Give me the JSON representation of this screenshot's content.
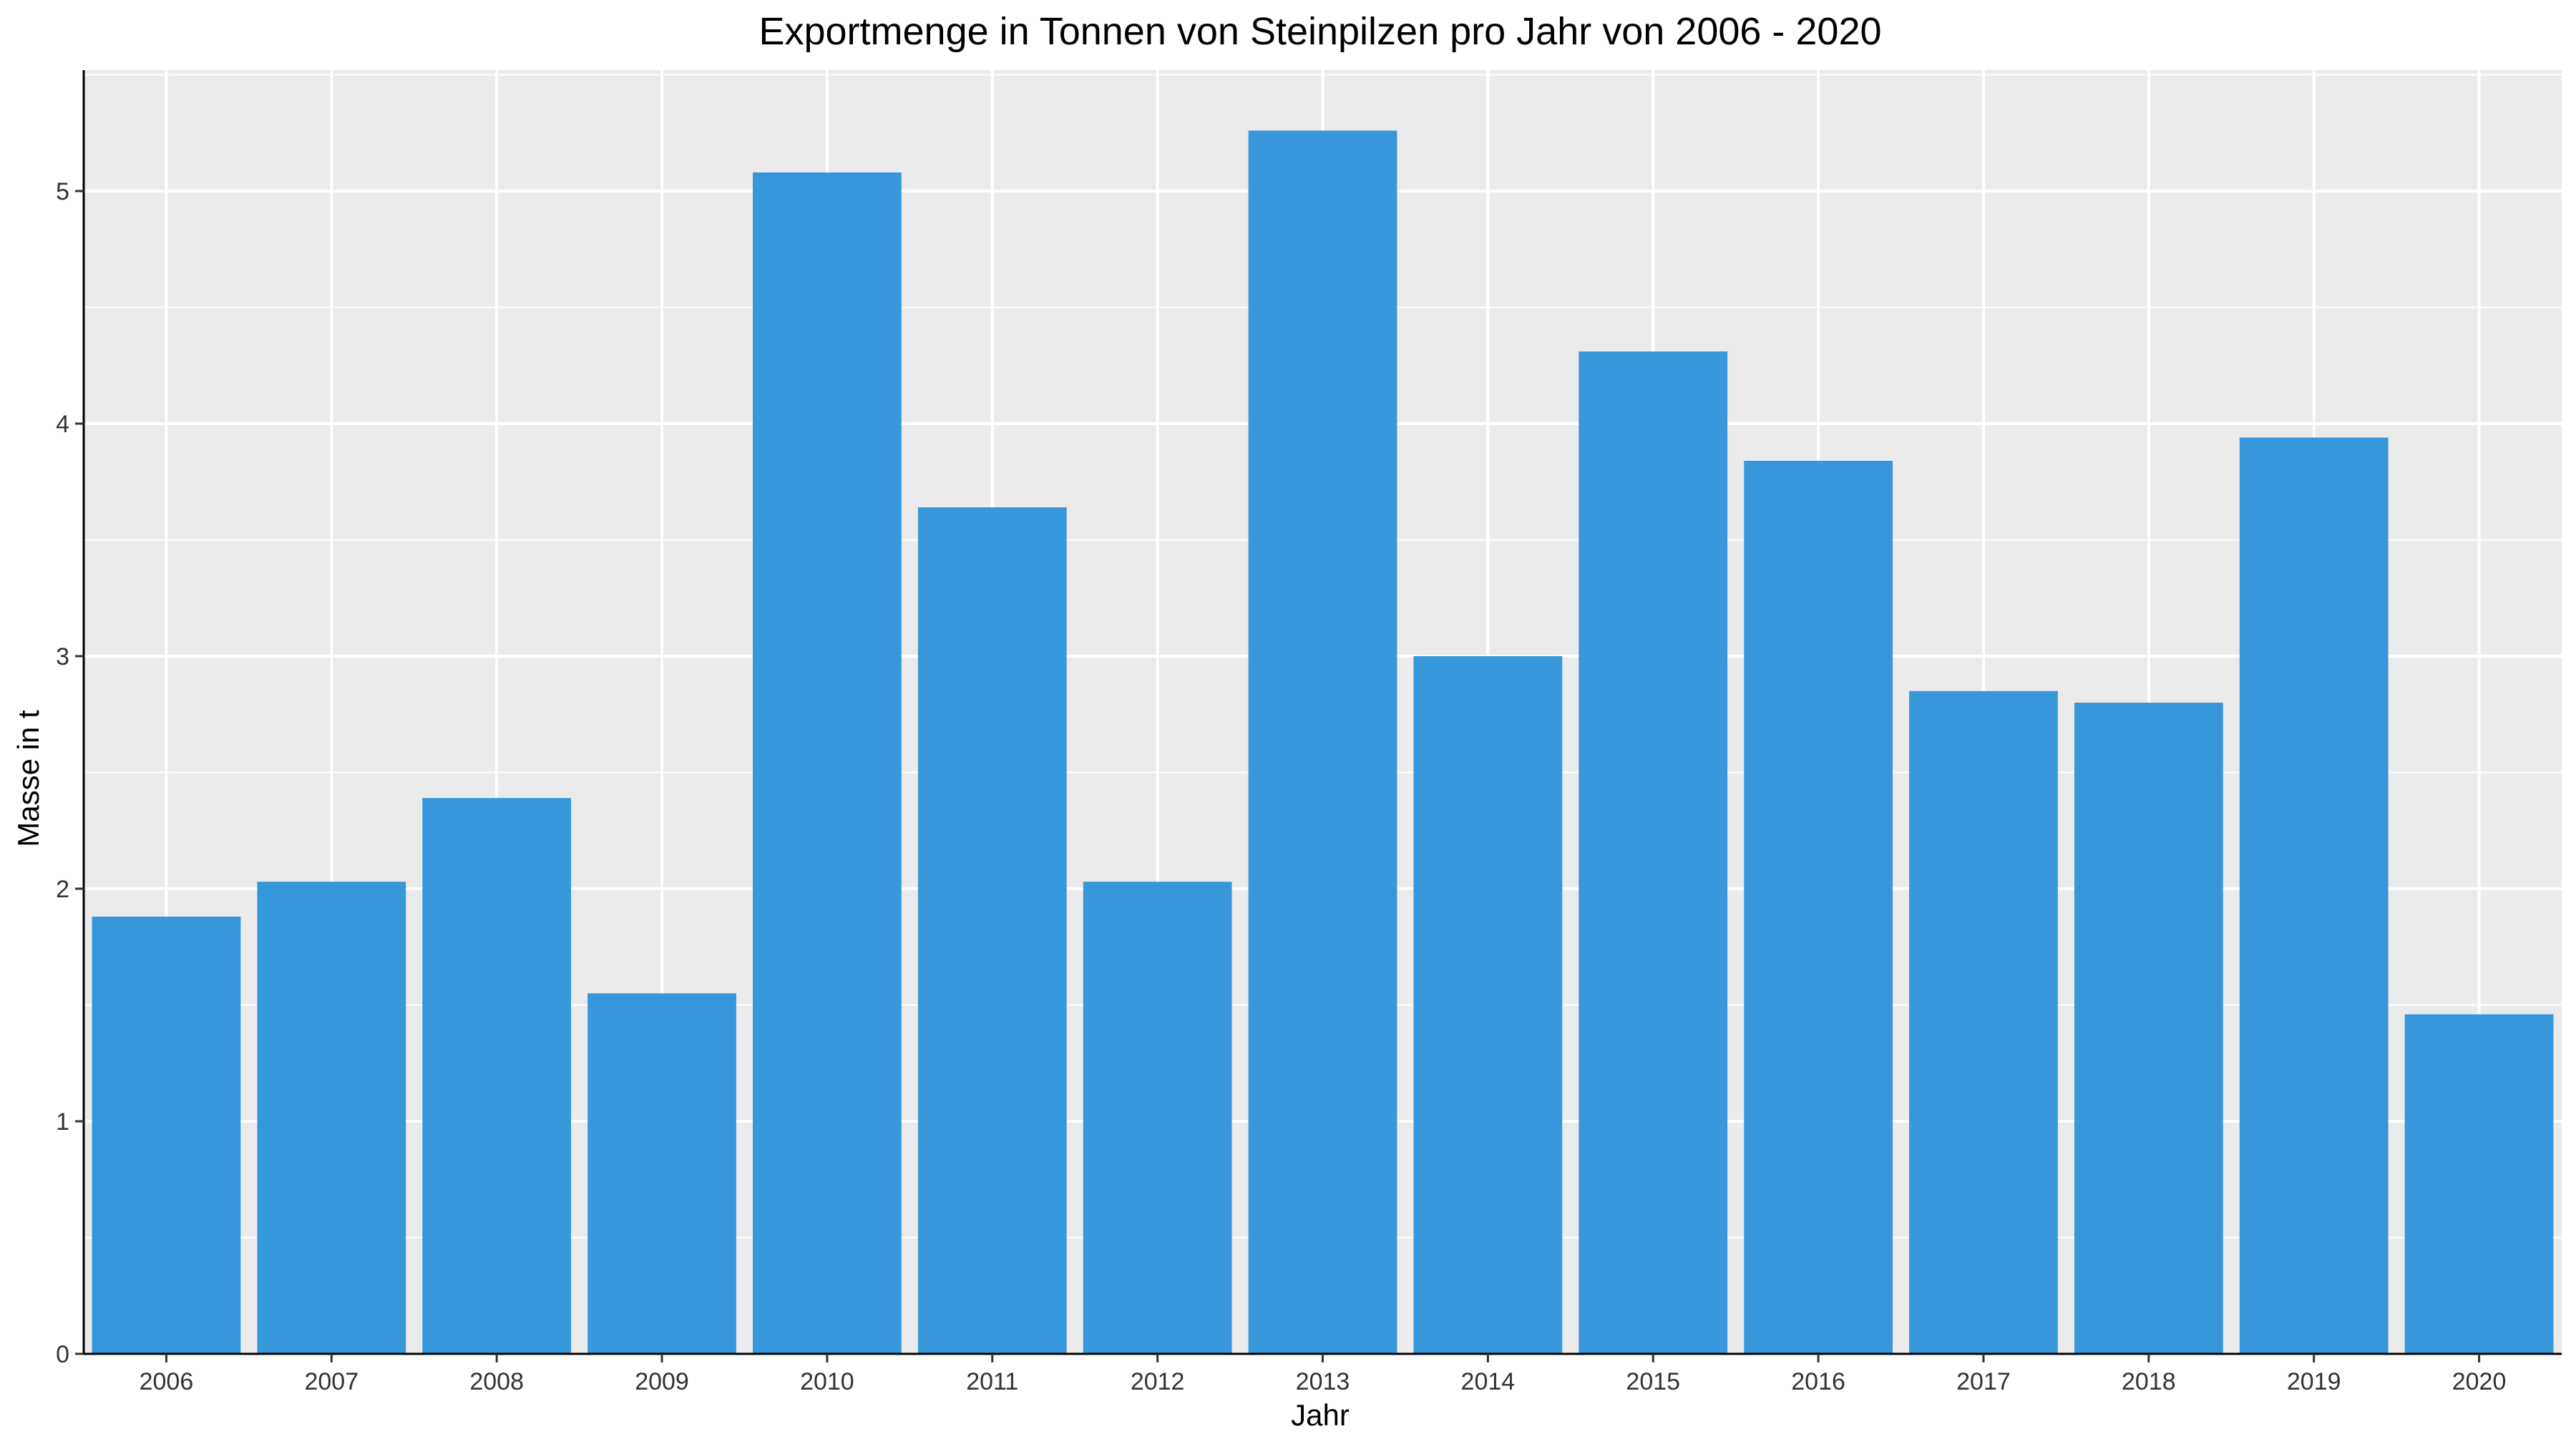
{
  "chart_data": {
    "type": "bar",
    "title": "Exportmenge in Tonnen von Steinpilzen pro Jahr von 2006 - 2020",
    "xlabel": "Jahr",
    "ylabel": "Masse in t",
    "categories": [
      "2006",
      "2007",
      "2008",
      "2009",
      "2010",
      "2011",
      "2012",
      "2013",
      "2014",
      "2015",
      "2016",
      "2017",
      "2018",
      "2019",
      "2020"
    ],
    "values": [
      1.88,
      2.03,
      2.39,
      1.55,
      5.08,
      3.64,
      2.03,
      5.26,
      3.0,
      4.31,
      3.84,
      2.85,
      2.8,
      3.94,
      1.46
    ],
    "ylim": [
      0,
      5.52
    ],
    "yticks": [
      "0",
      "1",
      "2",
      "3",
      "4",
      "5"
    ],
    "grid": true,
    "legend": "none",
    "colors": {
      "bar": "#3797DB",
      "panel": "#EBEBEB",
      "grid": "#FFFFFF",
      "axis": "#000000"
    }
  }
}
